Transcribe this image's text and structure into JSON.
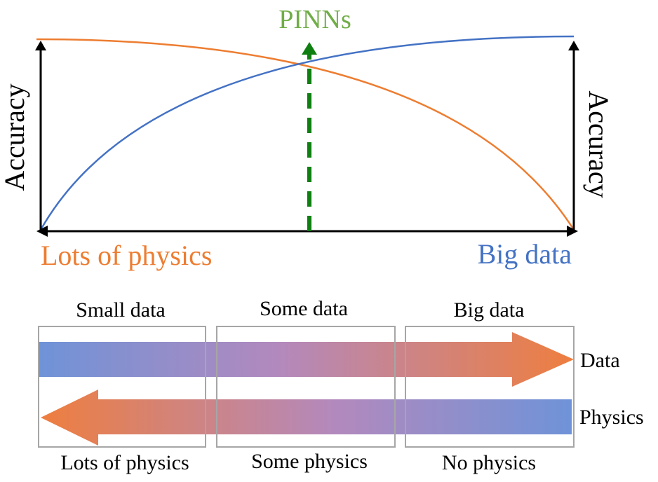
{
  "top_chart": {
    "pinns_label": "PINNs",
    "left_axis_label": "Accuracy",
    "right_axis_label": "Accuracy",
    "left_end_label": "Lots of physics",
    "right_end_label": "Big data",
    "colors": {
      "physics_curve": "#ED7D31",
      "data_curve": "#4472C4",
      "pinns": "#70AD47",
      "pinns_arrow": "#0F7F12",
      "axis": "#000000"
    }
  },
  "bottom_diagram": {
    "regimes": [
      {
        "top_label": "Small data",
        "bottom_label": "Lots of physics"
      },
      {
        "top_label": "Some data",
        "bottom_label": "Some physics"
      },
      {
        "top_label": "Big data",
        "bottom_label": "No physics"
      }
    ],
    "data_arrow_label": "Data",
    "physics_arrow_label": "Physics",
    "colors": {
      "gradient_blue": "#6F93D8",
      "gradient_purple": "#B389BD",
      "gradient_orange": "#EE7E3F",
      "box_border": "#A6A6A6",
      "text": "#000000"
    }
  }
}
